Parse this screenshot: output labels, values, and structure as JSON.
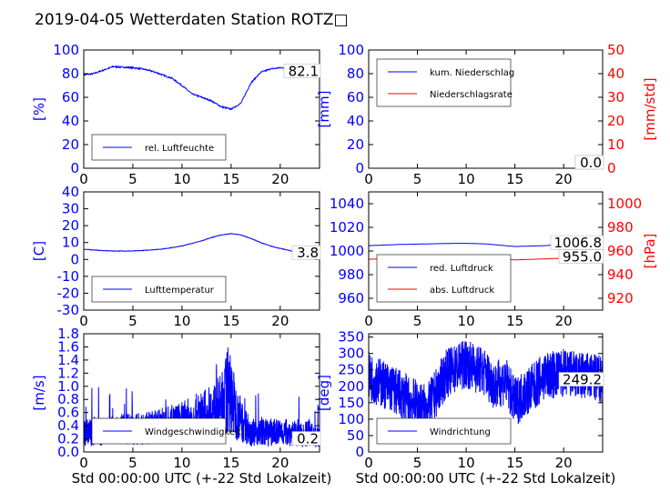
{
  "title": "2019-04-05 Wetterdaten Station ROTZ□",
  "colors": {
    "primary": "#0000ff",
    "secondary": "#ff0000",
    "text": "#000000"
  },
  "chart_data": [
    {
      "id": "humidity",
      "type": "line",
      "xlabel": "",
      "ylabel": "[%]",
      "xlim": [
        0,
        24
      ],
      "ylim": [
        0,
        100
      ],
      "xticks": [
        0,
        5,
        10,
        15,
        20
      ],
      "yticks": [
        0,
        20,
        40,
        60,
        80,
        100
      ],
      "legend": "bottom-left",
      "series": [
        {
          "name": "rel. Luftfeuchte",
          "color": "#0000ff",
          "noisy": 0.6,
          "x": [
            0,
            1,
            2,
            3,
            4,
            5,
            6,
            7,
            8,
            9,
            10,
            11,
            12,
            13,
            14,
            15,
            16,
            17,
            18,
            19,
            20,
            21,
            22,
            23,
            24
          ],
          "values": [
            79,
            80,
            83,
            86,
            85.5,
            85,
            84,
            82,
            79,
            76,
            70,
            63,
            60,
            57,
            52,
            50,
            55,
            72,
            81,
            84,
            85,
            85,
            83,
            82,
            82
          ]
        }
      ],
      "value_label": "82.1"
    },
    {
      "id": "precip",
      "type": "line",
      "xlabel": "",
      "ylabel": "[mm]",
      "ylabel_right": "[mm/std]",
      "xlim": [
        0,
        24
      ],
      "ylim": [
        0,
        100
      ],
      "ylim_right": [
        0,
        50
      ],
      "xticks": [
        0,
        5,
        10,
        15,
        20
      ],
      "yticks": [
        0,
        20,
        40,
        60,
        80,
        100
      ],
      "yticks_right": [
        0,
        10,
        20,
        30,
        40,
        50
      ],
      "legend": "top-left",
      "series": [
        {
          "name": "kum. Niederschlag",
          "color": "#0000ff",
          "axis": "left",
          "x": [
            0,
            24
          ],
          "values": [
            0,
            0
          ]
        },
        {
          "name": "Niederschlagsrate",
          "color": "#ff0000",
          "axis": "right",
          "x": [
            0,
            24
          ],
          "values": [
            0,
            0
          ]
        }
      ],
      "value_labels": [
        "0.0",
        "0.0"
      ]
    },
    {
      "id": "temperature",
      "type": "line",
      "xlabel": "",
      "ylabel": "[C]",
      "xlim": [
        0,
        24
      ],
      "ylim": [
        -30,
        40
      ],
      "xticks": [
        0,
        5,
        10,
        15,
        20
      ],
      "yticks": [
        -30,
        -20,
        -10,
        0,
        10,
        20,
        30,
        40
      ],
      "legend": "bottom-left",
      "series": [
        {
          "name": "Lufttemperatur",
          "color": "#0000ff",
          "noisy": 0.15,
          "x": [
            0,
            1,
            2,
            3,
            4,
            5,
            6,
            7,
            8,
            9,
            10,
            11,
            12,
            13,
            14,
            15,
            16,
            17,
            18,
            19,
            20,
            21,
            22,
            23,
            24
          ],
          "values": [
            6,
            5.6,
            5.2,
            5,
            5,
            5,
            5.3,
            5.7,
            6.2,
            7,
            8,
            9.5,
            11,
            13,
            14.5,
            15.3,
            14.5,
            12.5,
            10,
            8,
            6.5,
            5.2,
            4.2,
            3.8,
            3.8
          ]
        }
      ],
      "value_label": "3.8"
    },
    {
      "id": "pressure",
      "type": "line",
      "xlabel": "",
      "ylabel": "",
      "ylabel_right": "[hPa]",
      "xlim": [
        0,
        24
      ],
      "ylim": [
        950,
        1050
      ],
      "ylim_right": [
        910,
        1010
      ],
      "xticks": [
        0,
        5,
        10,
        15,
        20
      ],
      "yticks": [
        960,
        980,
        1000,
        1020,
        1040
      ],
      "yticks_right": [
        920,
        940,
        960,
        980,
        1000
      ],
      "legend": "bottom-left",
      "series": [
        {
          "name": "red. Luftdruck",
          "color": "#0000ff",
          "axis": "left",
          "x": [
            0,
            3,
            6,
            9,
            10,
            12,
            15,
            18,
            21,
            24
          ],
          "values": [
            1004.5,
            1005.5,
            1006,
            1006.5,
            1006.5,
            1006,
            1003.8,
            1004.5,
            1006,
            1006.8
          ]
        },
        {
          "name": "abs. Luftdruck",
          "color": "#ff0000",
          "axis": "right",
          "x": [
            0,
            3,
            6,
            9,
            12,
            15,
            18,
            21,
            24
          ],
          "values": [
            953,
            953.8,
            954.2,
            954.5,
            954.2,
            952.5,
            953.3,
            954.2,
            955
          ]
        }
      ],
      "value_labels": [
        "1006.8",
        "955.0"
      ]
    },
    {
      "id": "wind-speed",
      "type": "line",
      "xlabel": "Std 00:00:00 UTC (+-22 Std Lokalzeit)",
      "ylabel": "[m/s]",
      "xlim": [
        0,
        24
      ],
      "ylim": [
        0,
        1.8
      ],
      "xticks": [
        0,
        5,
        10,
        15,
        20
      ],
      "yticks": [
        0.0,
        0.2,
        0.4,
        0.6,
        0.8,
        1.0,
        1.2,
        1.4,
        1.6,
        1.8
      ],
      "legend": "bottom-left",
      "series": [
        {
          "name": "Windgeschwindigkeit",
          "color": "#0000ff",
          "noisy": "wind",
          "x": [
            0,
            2,
            4,
            6,
            8,
            10,
            12,
            13,
            14,
            14.8,
            15.5,
            17,
            19,
            21,
            22,
            23,
            24
          ],
          "values": [
            0.3,
            0.3,
            0.35,
            0.35,
            0.4,
            0.45,
            0.55,
            0.6,
            0.7,
            1.0,
            0.6,
            0.3,
            0.3,
            0.3,
            0.25,
            0.3,
            0.2
          ]
        }
      ],
      "value_label": "0.2"
    },
    {
      "id": "wind-direction",
      "type": "line",
      "xlabel": "Std 00:00:00 UTC (+-22 Std Lokalzeit)",
      "ylabel": "[deg]",
      "xlim": [
        0,
        24
      ],
      "ylim": [
        0,
        360
      ],
      "xticks": [
        0,
        5,
        10,
        15,
        20
      ],
      "yticks": [
        0,
        50,
        100,
        150,
        200,
        250,
        300,
        350
      ],
      "legend": "bottom-left",
      "series": [
        {
          "name": "Windrichtung",
          "color": "#0000ff",
          "noisy": "dir",
          "x": [
            0,
            2,
            4,
            6,
            8,
            10,
            12,
            13,
            14,
            15,
            16,
            17,
            18,
            20,
            22,
            24
          ],
          "values": [
            230,
            200,
            160,
            130,
            240,
            270,
            240,
            200,
            220,
            150,
            180,
            200,
            230,
            240,
            230,
            220
          ]
        }
      ],
      "value_label": "249.2"
    }
  ]
}
